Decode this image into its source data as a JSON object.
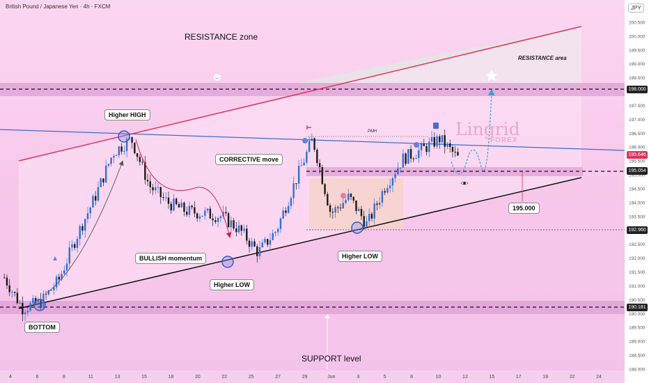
{
  "header": {
    "title": "British Pound / Japanese Yen · 4h · FXCM",
    "currency": "JPY"
  },
  "labels": {
    "resistance_zone": "RESISTANCE zone",
    "resistance_area": "RESISTANCE area",
    "support_level": "SUPPORT level",
    "higher_high": "Higher HIGH",
    "corrective_move": "CORRECTIVE move",
    "bullish_momentum": "BULLISH momentum",
    "higher_low_1": "Higher LOW",
    "higher_low_2": "Higher LOW",
    "bottom": "BOTTOM",
    "pmh": "PMH",
    "level_195": "195.000"
  },
  "branding": {
    "name": "Lingrid",
    "sub": "FOREX"
  },
  "price_tags": [
    {
      "value": "198.000",
      "style": "dark"
    },
    {
      "value": "195.646",
      "style": "red"
    },
    {
      "value": "195.054",
      "style": "dark"
    },
    {
      "value": "192.960",
      "style": "dark"
    },
    {
      "value": "190.181",
      "style": "dark"
    }
  ],
  "chart_data": {
    "type": "candlestick",
    "symbol": "GBPJPY",
    "timeframe": "4h",
    "ylim": [
      188.0,
      201.0
    ],
    "y_ticks": [
      "200.500",
      "200.000",
      "199.500",
      "199.000",
      "198.500",
      "198.000",
      "197.500",
      "197.000",
      "196.500",
      "196.000",
      "195.500",
      "195.000",
      "194.500",
      "194.000",
      "193.500",
      "193.000",
      "192.500",
      "192.000",
      "191.500",
      "191.000",
      "190.500",
      "190.000",
      "189.500",
      "189.000",
      "188.500",
      "188.000"
    ],
    "x_ticks": [
      "4",
      "6",
      "8",
      "11",
      "13",
      "15",
      "18",
      "20",
      "22",
      "25",
      "27",
      "29",
      "Jun",
      "3",
      "5",
      "8",
      "10",
      "12",
      "15",
      "17",
      "19",
      "22",
      "24"
    ],
    "close_path": [
      191.3,
      190.2,
      190.4,
      191.2,
      192.8,
      194.2,
      195.8,
      196.3,
      194.6,
      194.0,
      193.7,
      193.6,
      193.5,
      193.0,
      192.2,
      193.0,
      194.7,
      196.3,
      193.6,
      194.2,
      193.2,
      194.6,
      195.6,
      195.9,
      196.3,
      195.6
    ],
    "key_levels": [
      198.0,
      195.054,
      192.96,
      190.181
    ],
    "current_price": 195.646
  }
}
